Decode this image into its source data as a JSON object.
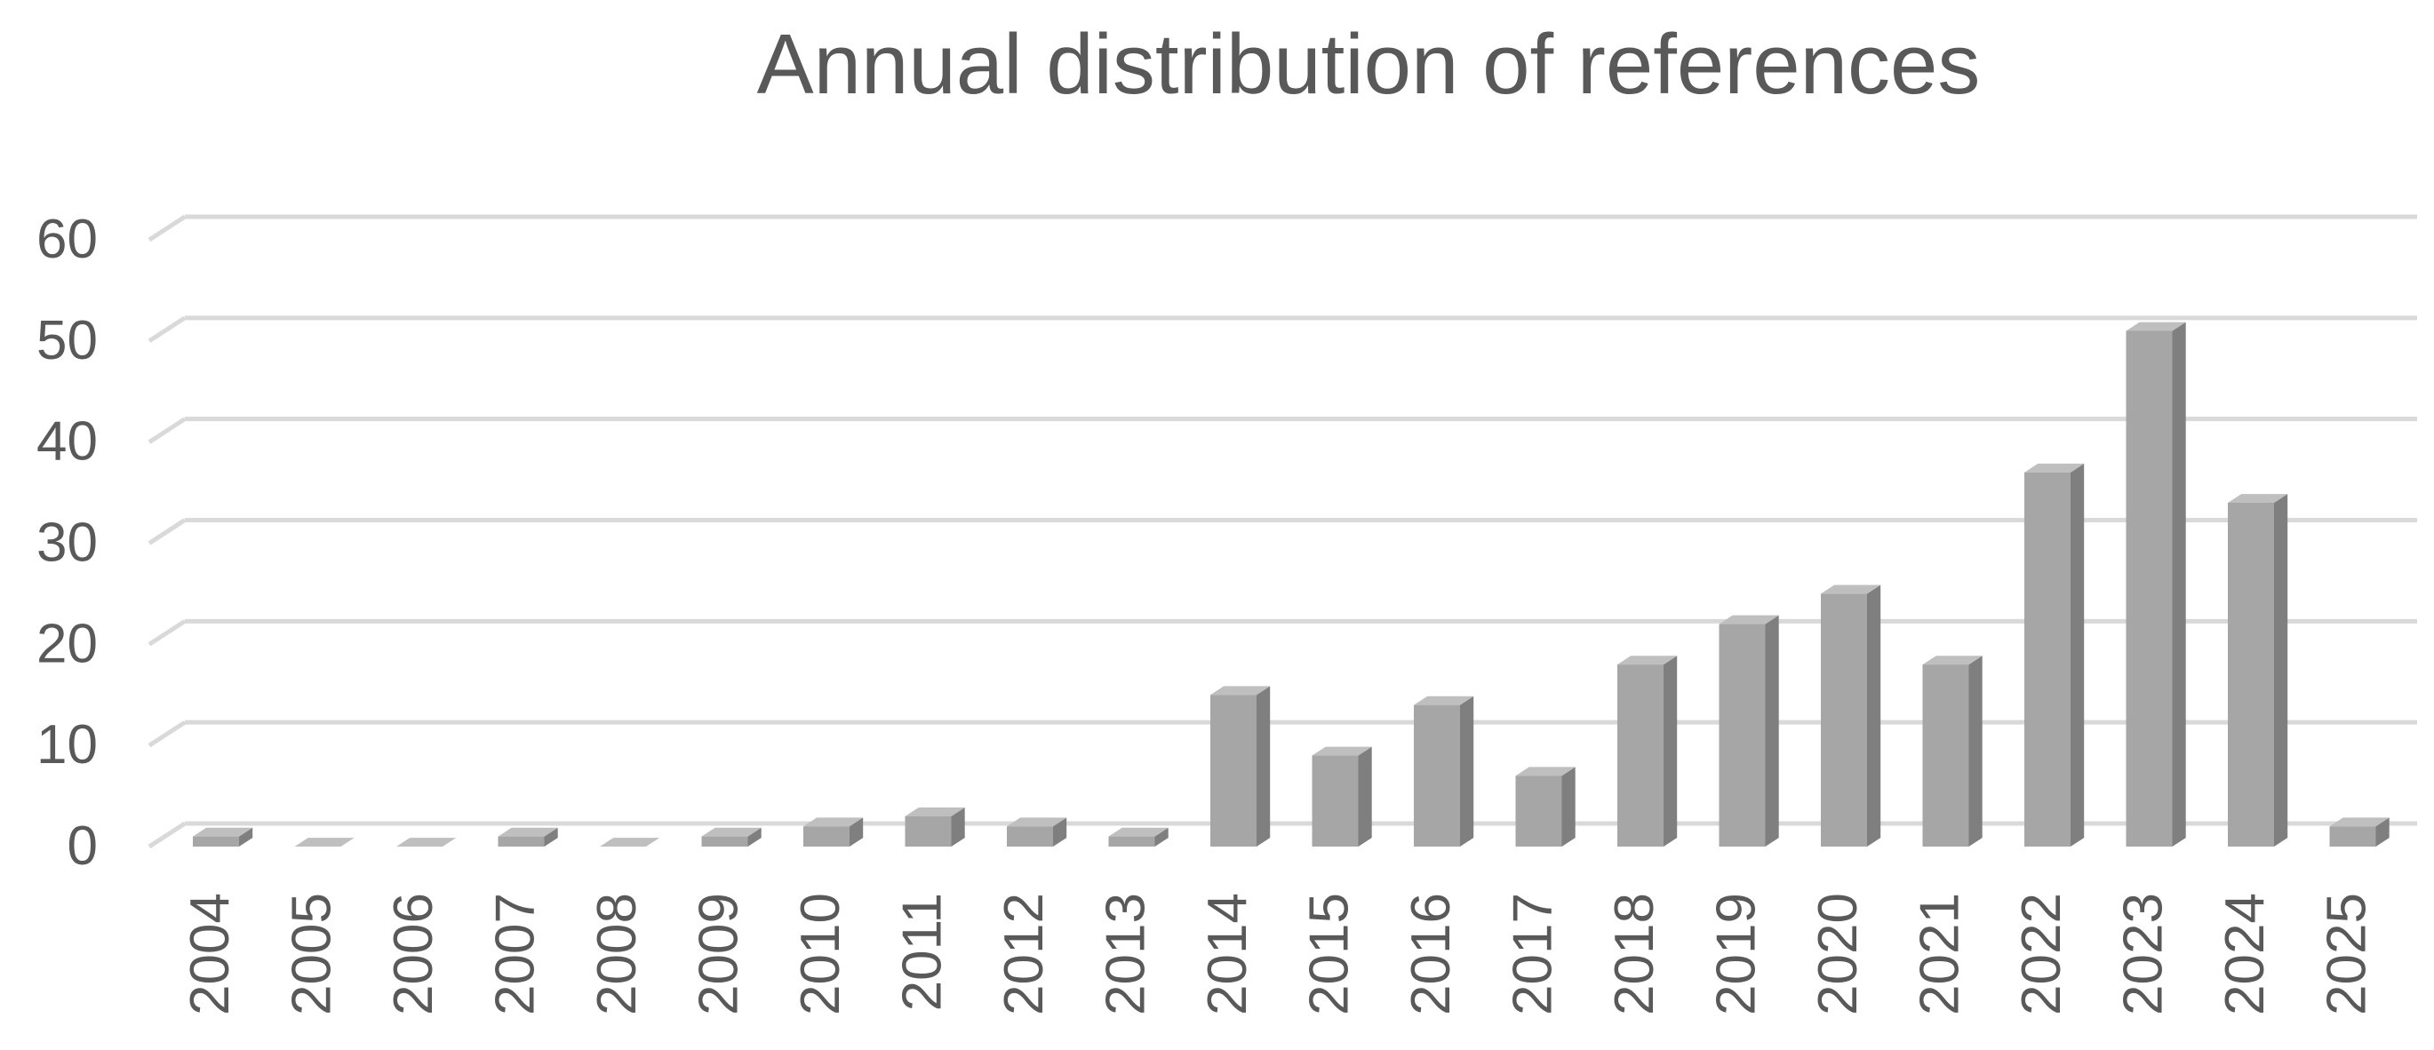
{
  "chart_data": {
    "type": "bar",
    "title": "Annual distribution of references",
    "xlabel": "",
    "ylabel": "",
    "categories": [
      "2004",
      "2005",
      "2006",
      "2007",
      "2008",
      "2009",
      "2010",
      "2011",
      "2012",
      "2013",
      "2014",
      "2015",
      "2016",
      "2017",
      "2018",
      "2019",
      "2020",
      "2021",
      "2022",
      "2023",
      "2024",
      "2025"
    ],
    "values": [
      1,
      0,
      0,
      1,
      0,
      1,
      2,
      3,
      2,
      1,
      15,
      9,
      14,
      7,
      18,
      22,
      25,
      18,
      37,
      51,
      34,
      2
    ],
    "ylim": [
      0,
      60
    ],
    "yticks": [
      0,
      10,
      20,
      30,
      40,
      50,
      60
    ],
    "grid": true,
    "legend": "none",
    "style": "3d-column",
    "colors": {
      "bar_front": "#a6a6a6",
      "bar_side": "#7f7f7f",
      "bar_top": "#bfbfbf",
      "grid": "#d9d9d9",
      "text": "#595959"
    }
  }
}
